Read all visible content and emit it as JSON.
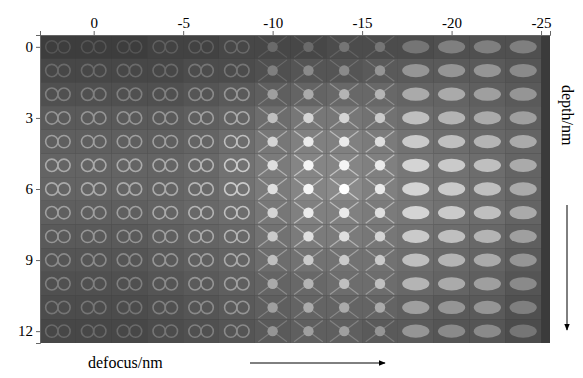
{
  "chart_data": {
    "type": "image_grid",
    "xlabel": "defocus/nm",
    "ylabel": "depth/nm",
    "x": [
      2,
      0,
      -2,
      -4,
      -6,
      -8,
      -10,
      -12,
      -14,
      -16,
      -18,
      -20,
      -22,
      -24
    ],
    "y": [
      0,
      1,
      2,
      3,
      4,
      5,
      6,
      7,
      8,
      9,
      10,
      11,
      12
    ],
    "xlim": [
      3,
      -25.5
    ],
    "ylim": [
      -0.5,
      12.5
    ],
    "xticks": [
      0,
      -5,
      -10,
      -15,
      -20,
      -25
    ],
    "yticks": [
      0,
      3,
      6,
      9,
      12
    ],
    "cells": [
      [
        0.2,
        0.2,
        0.2,
        0.25,
        0.25,
        0.3,
        0.3,
        0.3,
        0.35,
        0.35,
        0.35,
        0.4,
        0.4,
        0.4
      ],
      [
        0.3,
        0.3,
        0.3,
        0.3,
        0.35,
        0.35,
        0.4,
        0.45,
        0.45,
        0.5,
        0.5,
        0.5,
        0.5,
        0.45
      ],
      [
        0.4,
        0.4,
        0.4,
        0.4,
        0.45,
        0.5,
        0.55,
        0.6,
        0.65,
        0.65,
        0.6,
        0.6,
        0.55,
        0.5
      ],
      [
        0.5,
        0.5,
        0.5,
        0.5,
        0.55,
        0.6,
        0.7,
        0.8,
        0.8,
        0.75,
        0.7,
        0.65,
        0.6,
        0.55
      ],
      [
        0.55,
        0.55,
        0.55,
        0.55,
        0.6,
        0.7,
        0.8,
        0.9,
        0.9,
        0.85,
        0.75,
        0.7,
        0.65,
        0.6
      ],
      [
        0.6,
        0.6,
        0.6,
        0.6,
        0.65,
        0.75,
        0.85,
        0.95,
        0.95,
        0.9,
        0.8,
        0.75,
        0.7,
        0.6
      ],
      [
        0.6,
        0.6,
        0.6,
        0.6,
        0.65,
        0.75,
        0.85,
        0.95,
        1.0,
        0.9,
        0.8,
        0.75,
        0.7,
        0.6
      ],
      [
        0.55,
        0.55,
        0.55,
        0.6,
        0.65,
        0.7,
        0.8,
        0.9,
        0.9,
        0.85,
        0.8,
        0.75,
        0.7,
        0.6
      ],
      [
        0.5,
        0.5,
        0.5,
        0.55,
        0.6,
        0.65,
        0.75,
        0.85,
        0.85,
        0.8,
        0.75,
        0.7,
        0.65,
        0.55
      ],
      [
        0.45,
        0.45,
        0.45,
        0.5,
        0.55,
        0.6,
        0.7,
        0.75,
        0.75,
        0.75,
        0.7,
        0.65,
        0.6,
        0.5
      ],
      [
        0.4,
        0.4,
        0.4,
        0.45,
        0.5,
        0.55,
        0.6,
        0.65,
        0.7,
        0.7,
        0.65,
        0.6,
        0.55,
        0.45
      ],
      [
        0.35,
        0.35,
        0.35,
        0.4,
        0.45,
        0.5,
        0.55,
        0.6,
        0.6,
        0.6,
        0.55,
        0.5,
        0.5,
        0.4
      ],
      [
        0.3,
        0.3,
        0.3,
        0.35,
        0.4,
        0.45,
        0.5,
        0.55,
        0.55,
        0.5,
        0.5,
        0.45,
        0.45,
        0.35
      ]
    ]
  }
}
